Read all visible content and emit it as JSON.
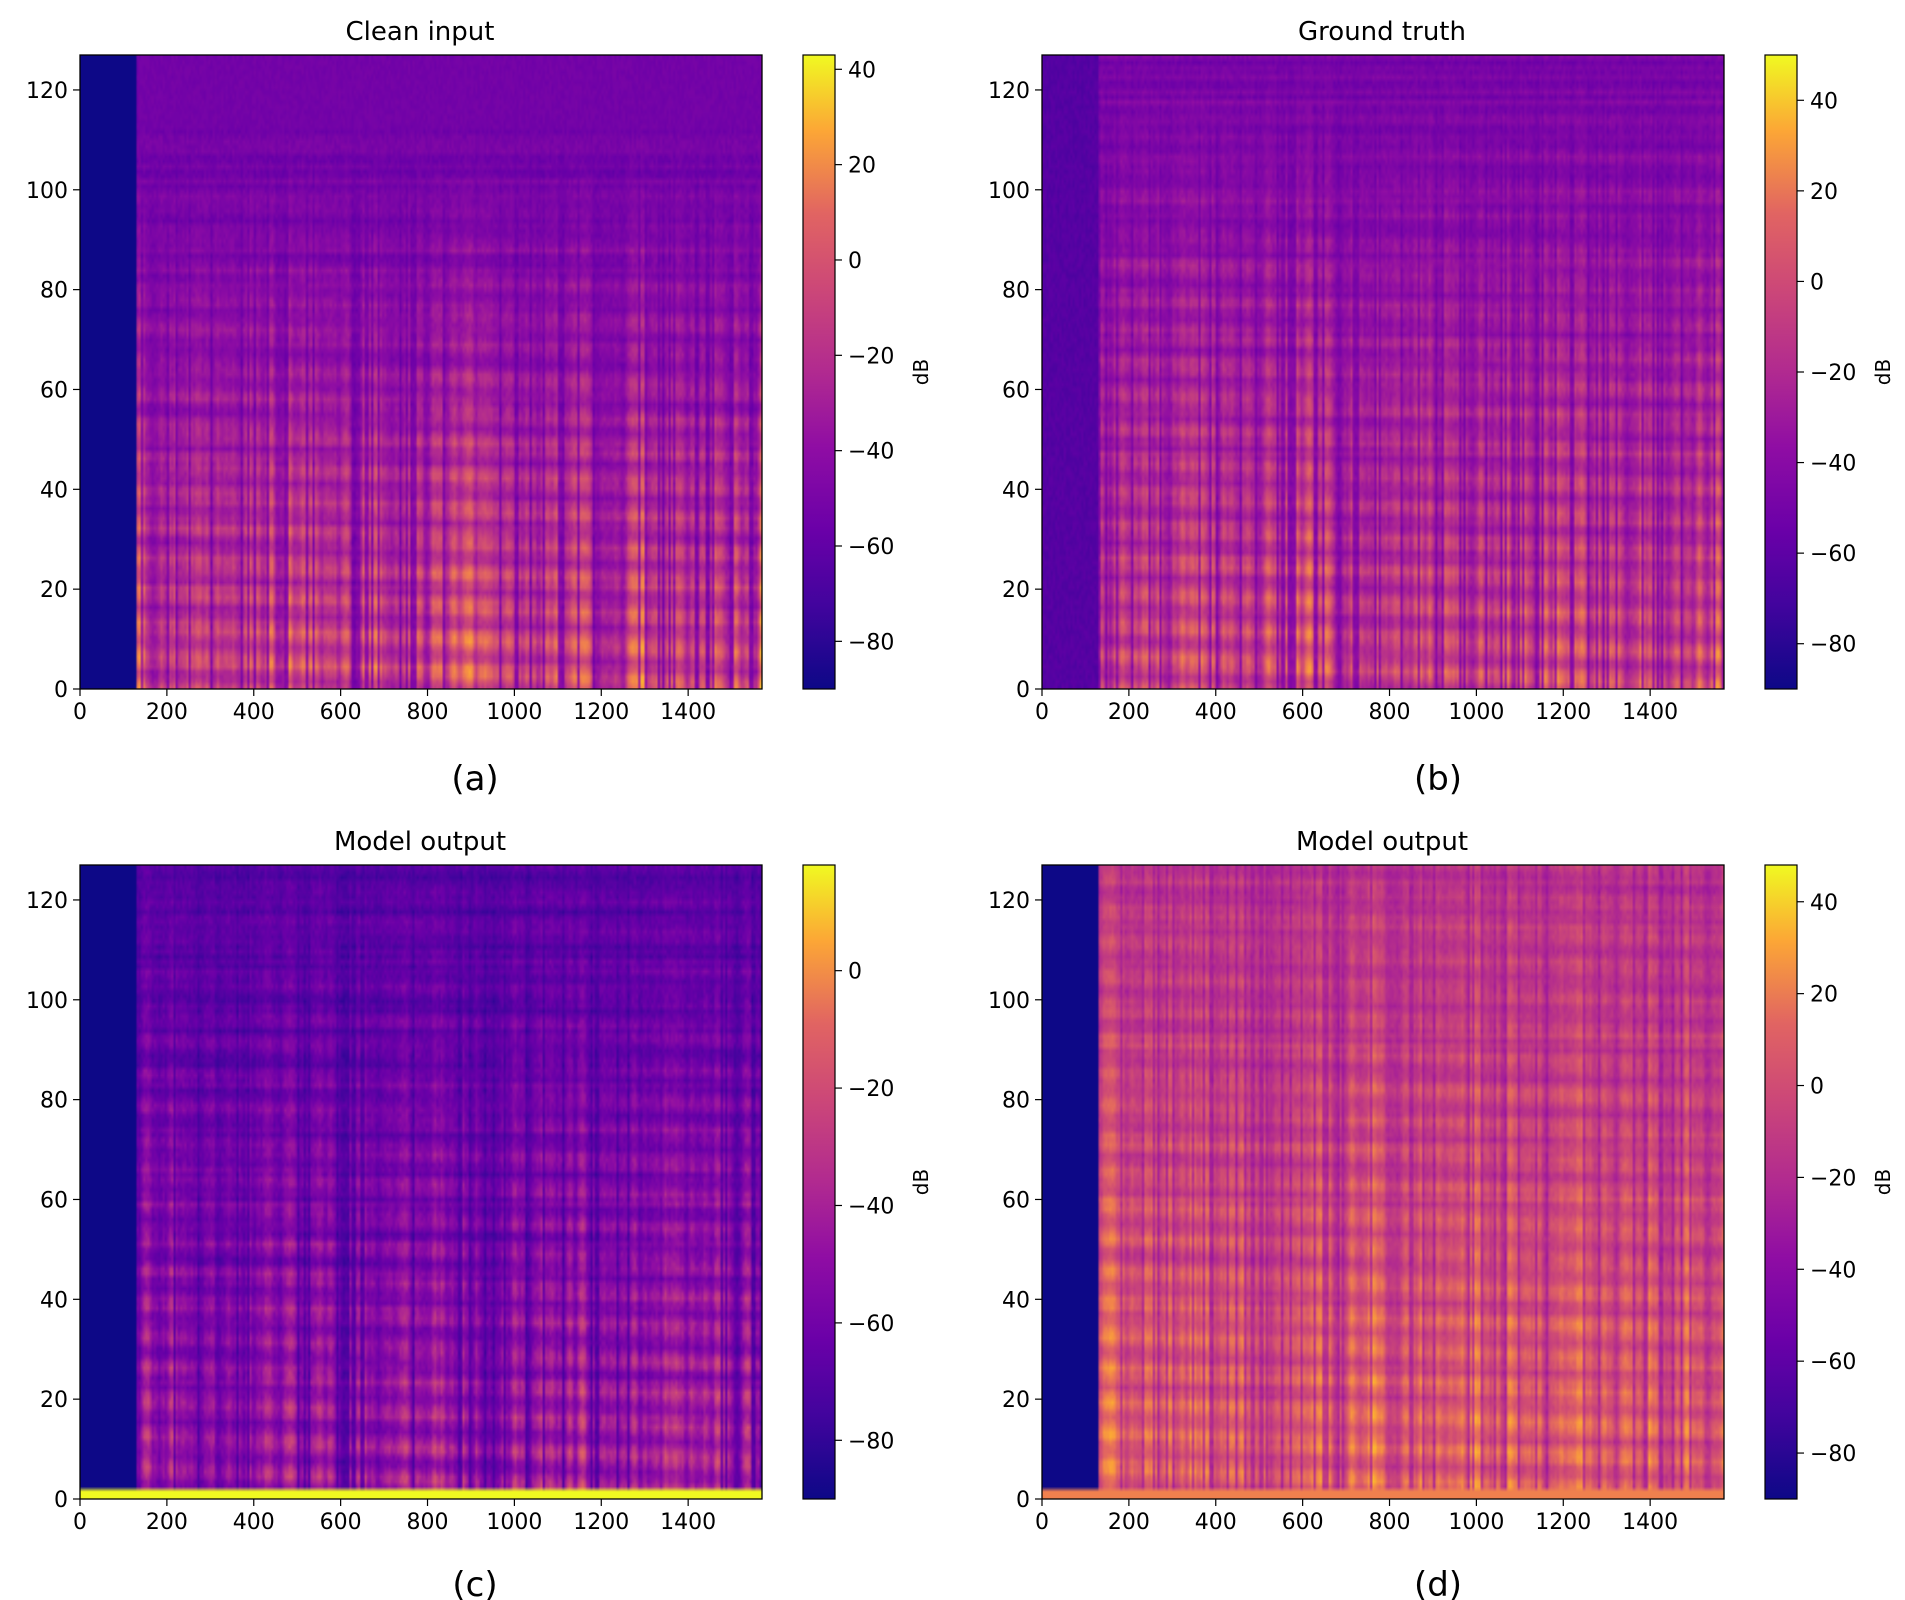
{
  "figure": {
    "panels": [
      {
        "id": "a",
        "title": "Clean input",
        "caption": "(a)"
      },
      {
        "id": "b",
        "title": "Ground truth",
        "caption": "(b)"
      },
      {
        "id": "c",
        "title": "Model output",
        "caption": "(c)"
      },
      {
        "id": "d",
        "title": "Model output",
        "caption": "(d)"
      }
    ]
  },
  "chart_data": [
    {
      "type": "heatmap",
      "title": "Clean input",
      "caption": "(a)",
      "colormap": "plasma",
      "colorbar_label": "dB",
      "x_range": [
        0,
        1570
      ],
      "y_range": [
        0,
        127
      ],
      "x_ticks": [
        0,
        200,
        400,
        600,
        800,
        1000,
        1200,
        1400
      ],
      "y_ticks": [
        0,
        20,
        40,
        60,
        80,
        100,
        120
      ],
      "color_range": [
        -90,
        43
      ],
      "colorbar_ticks": [
        -80,
        -60,
        -40,
        -20,
        0,
        20,
        40
      ],
      "silent_until_frame": 130,
      "bottom_band_db": null,
      "profile": "clean",
      "seed": 3
    },
    {
      "type": "heatmap",
      "title": "Ground truth",
      "caption": "(b)",
      "colormap": "plasma",
      "colorbar_label": "dB",
      "x_range": [
        0,
        1570
      ],
      "y_range": [
        0,
        127
      ],
      "x_ticks": [
        0,
        200,
        400,
        600,
        800,
        1000,
        1200,
        1400
      ],
      "y_ticks": [
        0,
        20,
        40,
        60,
        80,
        100,
        120
      ],
      "color_range": [
        -90,
        50
      ],
      "colorbar_ticks": [
        -80,
        -60,
        -40,
        -20,
        0,
        20,
        40
      ],
      "silent_until_frame": 130,
      "bottom_band_db": null,
      "profile": "truth",
      "seed": 7
    },
    {
      "type": "heatmap",
      "title": "Model output",
      "caption": "(c)",
      "colormap": "plasma",
      "colorbar_label": "dB",
      "x_range": [
        0,
        1570
      ],
      "y_range": [
        0,
        127
      ],
      "x_ticks": [
        0,
        200,
        400,
        600,
        800,
        1000,
        1200,
        1400
      ],
      "y_ticks": [
        0,
        20,
        40,
        60,
        80,
        100,
        120
      ],
      "color_range": [
        -90,
        18
      ],
      "colorbar_ticks": [
        -80,
        -60,
        -40,
        -20,
        0
      ],
      "silent_until_frame": 130,
      "bottom_band_db": 18,
      "profile": "model_weak",
      "seed": 11
    },
    {
      "type": "heatmap",
      "title": "Model output",
      "caption": "(d)",
      "colormap": "plasma",
      "colorbar_label": "dB",
      "x_range": [
        0,
        1570
      ],
      "y_range": [
        0,
        127
      ],
      "x_ticks": [
        0,
        200,
        400,
        600,
        800,
        1000,
        1200,
        1400
      ],
      "y_ticks": [
        0,
        20,
        40,
        60,
        80,
        100,
        120
      ],
      "color_range": [
        -90,
        48
      ],
      "colorbar_ticks": [
        -80,
        -60,
        -40,
        -20,
        0,
        20,
        40
      ],
      "silent_until_frame": 130,
      "bottom_band_db": 5,
      "profile": "model_strong",
      "seed": 19
    }
  ]
}
